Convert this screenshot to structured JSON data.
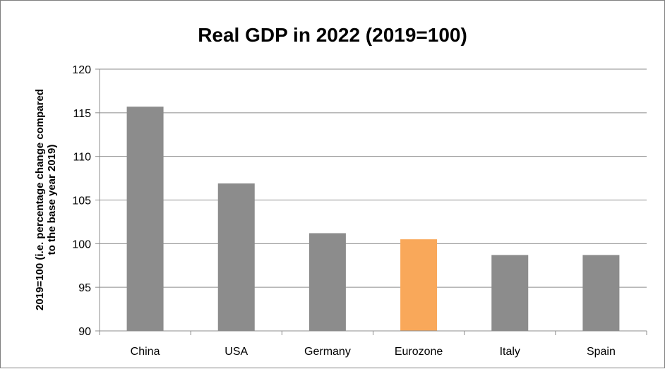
{
  "chart_data": {
    "type": "bar",
    "title": "Real GDP in 2022 (2019=100)",
    "ylabel_lines": [
      "2019=100 (i.e. percentage change compared",
      "to the base year 2019)"
    ],
    "xlabel": "",
    "categories": [
      "China",
      "USA",
      "Germany",
      "Eurozone",
      "Italy",
      "Spain"
    ],
    "values": [
      115.7,
      106.9,
      101.2,
      100.5,
      98.7,
      98.7
    ],
    "colors": [
      "#8c8c8c",
      "#8c8c8c",
      "#8c8c8c",
      "#f9a85a",
      "#8c8c8c",
      "#8c8c8c"
    ],
    "ylim": [
      90,
      120
    ],
    "yticks": [
      90,
      95,
      100,
      105,
      110,
      115,
      120
    ],
    "grid": true,
    "legend": "none"
  }
}
